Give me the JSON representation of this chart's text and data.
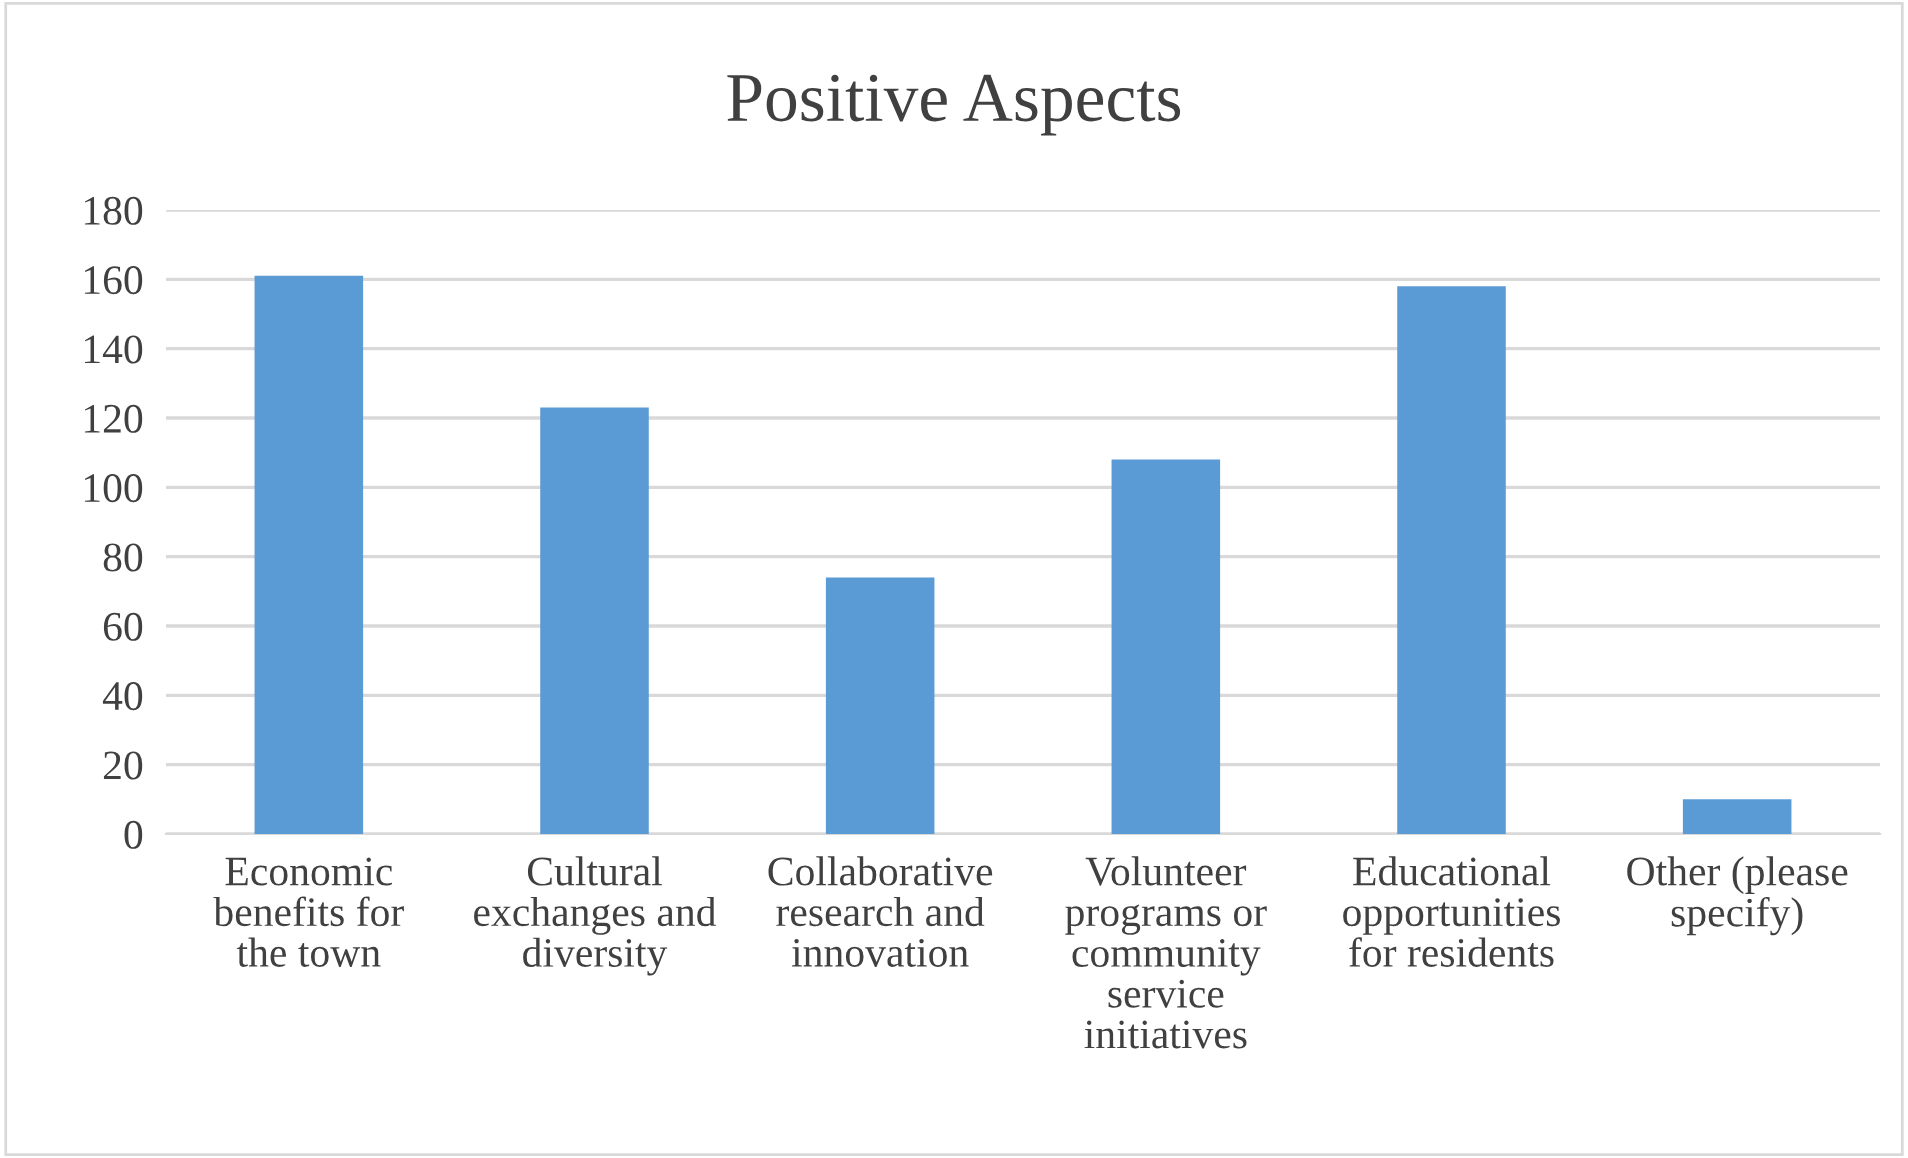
{
  "chart_data": {
    "type": "bar",
    "title": "Positive Aspects",
    "categories": [
      "Economic\nbenefits for\nthe town",
      "Cultural\nexchanges and\ndiversity",
      "Collaborative\nresearch and\ninnovation",
      "Volunteer\nprograms or\ncommunity\nservice\ninitiatives",
      "Educational\nopportunities\nfor residents",
      "Other (please\nspecify)"
    ],
    "values": [
      161,
      123,
      74,
      108,
      158,
      10
    ],
    "color": "#5b9bd5",
    "ylim": [
      0,
      180
    ],
    "yticks": [
      0,
      20,
      40,
      60,
      80,
      100,
      120,
      140,
      160,
      180
    ],
    "grid": "y"
  }
}
